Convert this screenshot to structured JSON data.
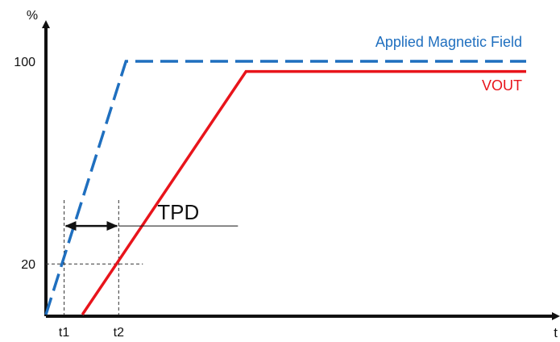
{
  "chart_data": {
    "type": "line",
    "title": "",
    "xlabel": "t",
    "ylabel": "%",
    "ylim": [
      0,
      100
    ],
    "y_ticks": [
      {
        "value": 20,
        "label": "20"
      },
      {
        "value": 100,
        "label": "100"
      }
    ],
    "x_ticks": [
      {
        "id": "t1",
        "label": "t1",
        "value": 0.5
      },
      {
        "id": "t2",
        "label": "t2",
        "value": 2.0
      }
    ],
    "xlim": [
      0,
      13.2
    ],
    "grid": false,
    "series": [
      {
        "name": "Applied Magnetic Field",
        "color": "#1f6fbf",
        "style": "dashed",
        "points": [
          [
            0,
            0
          ],
          [
            2.2,
            100
          ],
          [
            13.2,
            100
          ]
        ]
      },
      {
        "name": "VOUT",
        "color": "#e8141b",
        "style": "solid",
        "points": [
          [
            1.0,
            0
          ],
          [
            5.5,
            96
          ],
          [
            13.2,
            96
          ]
        ]
      }
    ],
    "annotations": [
      {
        "label": "TPD",
        "type": "interval",
        "from": 0.5,
        "to": 2.0,
        "level": 35
      }
    ]
  }
}
